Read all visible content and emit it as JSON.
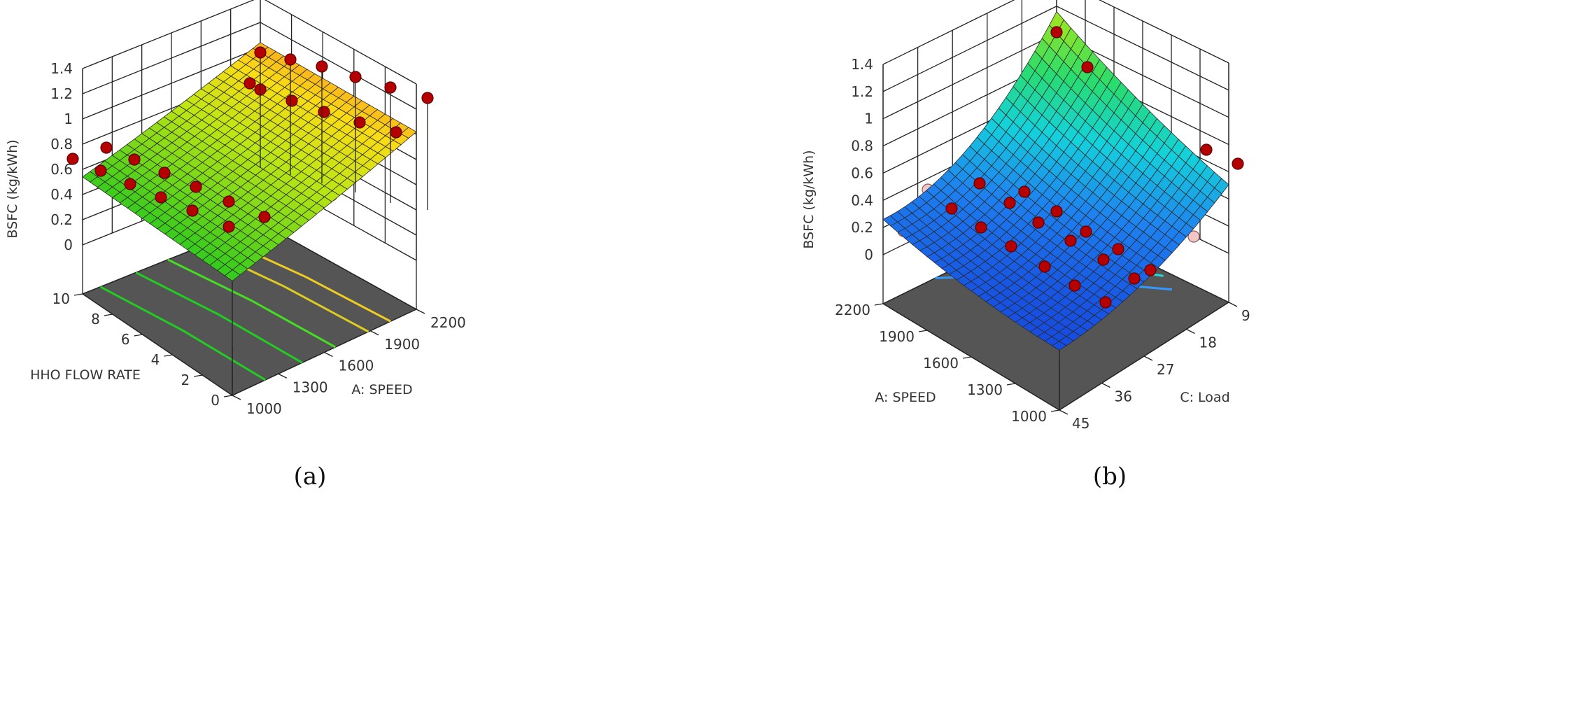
{
  "chart_data": [
    {
      "type": "surface",
      "panel_label": "(a)",
      "zlabel": "BSFC (kg/kWh)",
      "z_ticks": [
        "0",
        "0.2",
        "0.4",
        "0.6",
        "0.8",
        "1",
        "1.2",
        "1.4"
      ],
      "zlim": [
        0,
        1.4
      ],
      "x_axis": {
        "label": "A: SPEED",
        "ticks": [
          "1000",
          "1300",
          "1600",
          "1900",
          "2200"
        ],
        "range": [
          1000,
          2200
        ]
      },
      "y_axis": {
        "label": "HHO FLOW RATE",
        "ticks": [
          "0",
          "2",
          "4",
          "6",
          "8",
          "10"
        ],
        "range": [
          0,
          10
        ]
      },
      "surface_corners": {
        "speed1000_hho0": 0.52,
        "speed1000_hho10": 0.52,
        "speed2200_hho0": 1.02,
        "speed2200_hho10": 1.02
      },
      "colormap": "green-yellow-orange",
      "floor_contours": {
        "count": 5,
        "colors": [
          "#22cc22",
          "#22cc22",
          "#44dd22",
          "#ddcc22",
          "#eecc22"
        ]
      },
      "design_points_above": [
        {
          "speed": 1000,
          "hho": 10,
          "bsfc": 0.6
        },
        {
          "speed": 2200,
          "hho": 10,
          "bsfc": 1.34
        },
        {
          "speed": 2200,
          "hho": 8,
          "bsfc": 1.3
        },
        {
          "speed": 2200,
          "hho": 6,
          "bsfc": 1.25
        },
        {
          "speed": 2200,
          "hho": 4,
          "bsfc": 1.2
        },
        {
          "speed": 2200,
          "hho": 2,
          "bsfc": 1.15
        },
        {
          "speed": 2200,
          "hho": 0,
          "bsfc": 1.12
        }
      ],
      "design_points_below": [
        {
          "speed": 1600,
          "hho": 0,
          "bsfc": 0.5
        },
        {
          "speed": 1900,
          "hho": 0,
          "bsfc": 0.66
        }
      ]
    },
    {
      "type": "surface",
      "panel_label": "(b)",
      "zlabel": "BSFC (kg/kWh)",
      "z_ticks": [
        "0",
        "0.2",
        "0.4",
        "0.6",
        "0.8",
        "1",
        "1.2",
        "1.4"
      ],
      "zlim": [
        0,
        1.4
      ],
      "x_axis": {
        "label": "A: SPEED",
        "ticks": [
          "1000",
          "1300",
          "1600",
          "1900",
          "2200"
        ],
        "range": [
          1000,
          2200
        ]
      },
      "y_axis": {
        "label": "C: Load",
        "ticks": [
          "9",
          "18",
          "27",
          "36",
          "45"
        ],
        "range": [
          9,
          45
        ]
      },
      "surface_corners": {
        "speed1000_load9": 0.62,
        "speed2200_load9": 1.3,
        "speed2200_load45": 0.25,
        "speed1000_load45": 0.06
      },
      "colormap": "blue-cyan-green-yellow",
      "floor_contours": {
        "count": 3,
        "colors": [
          "#3399ff",
          "#22dddd",
          "#22cc55"
        ]
      },
      "design_points_above": [
        {
          "speed": 2200,
          "load": 9,
          "bsfc": 1.4
        },
        {
          "speed": 2200,
          "load": 12,
          "bsfc": 1.25
        },
        {
          "speed": 1000,
          "load": 9,
          "bsfc": 0.66
        },
        {
          "speed": 1100,
          "load": 9,
          "bsfc": 0.62
        }
      ],
      "design_points_below": [
        {
          "speed": 2200,
          "load": 45,
          "bsfc": 0.2
        },
        {
          "speed": 1000,
          "load": 45,
          "bsfc": 0.0
        },
        {
          "speed": 1000,
          "load": 9,
          "bsfc": 0.2
        }
      ]
    }
  ]
}
